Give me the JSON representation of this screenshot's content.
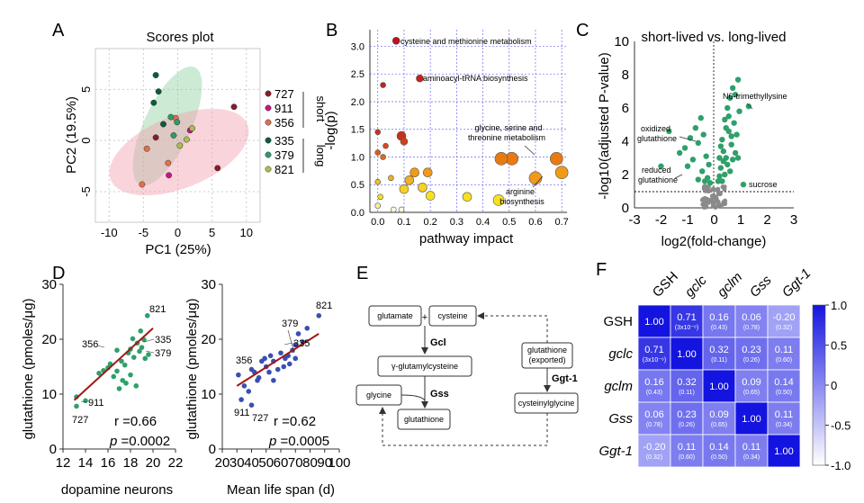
{
  "panels": {
    "A": {
      "letter": "A",
      "title": "Scores plot",
      "xlabel": "PC1 (25%)",
      "ylabel": "PC2 (19.5%)",
      "xticks": [
        "-10",
        "-5",
        "0",
        "5",
        "10"
      ],
      "yticks": [
        "5",
        "0",
        "-5"
      ],
      "legend_strains": [
        "727",
        "911",
        "356",
        "335",
        "379",
        "821"
      ],
      "group_short": "short",
      "group_long": "long"
    },
    "B": {
      "letter": "B",
      "xlabel": "pathway impact",
      "ylabel": "-log(p)",
      "xticks": [
        "0.0",
        "0.1",
        "0.2",
        "0.3",
        "0.4",
        "0.5",
        "0.6",
        "0.7"
      ],
      "yticks": [
        "3.0",
        "2.5",
        "2.0",
        "1.5",
        "1.0",
        "0.5",
        "0.0"
      ],
      "ann_cys": "cysteine and methionine metabolism",
      "ann_trna": "aminoacyl-tRNA biosynthesis",
      "ann_gly1": "glycine, serine and",
      "ann_gly2": "threonine metabolism",
      "ann_arg1": "arginine",
      "ann_arg2": "biosynthesis"
    },
    "C": {
      "letter": "C",
      "title": "short-lived vs. long-lived",
      "xlabel": "log2(fold-change)",
      "ylabel": "-log10(adjusted P-value)",
      "xticks": [
        "-3",
        "-2",
        "-1",
        "0",
        "1",
        "2",
        "3"
      ],
      "yticks": [
        "10",
        "8",
        "6",
        "4",
        "2",
        "0"
      ],
      "ann_ox1": "oxidized",
      "ann_ox2": "glutathione",
      "ann_red1": "reduced",
      "ann_red2": "glutathione",
      "ann_n6": "N6-trimethyllysine",
      "ann_suc": "sucrose"
    },
    "D": {
      "letter": "D",
      "ylabel": "glutathione (pmoles/μg)",
      "left": {
        "xlabel": "dopamine neurons",
        "xticks": [
          "12",
          "14",
          "16",
          "18",
          "20",
          "22"
        ],
        "yticks": [
          "30",
          "20",
          "10",
          "0"
        ],
        "r": "r =0.66",
        "p_sym": "p",
        "p": " =0.0002",
        "labels": [
          "821",
          "335",
          "379",
          "356",
          "911",
          "727"
        ]
      },
      "right": {
        "xlabel": "Mean life span (d)",
        "xticks": [
          "20",
          "30",
          "40",
          "50",
          "60",
          "70",
          "80",
          "90",
          "100"
        ],
        "yticks": [
          "30",
          "20",
          "10",
          "0"
        ],
        "r": "r =0.62",
        "p_sym": "p",
        "p": " =0.0005",
        "labels": [
          "821",
          "379",
          "335",
          "356",
          "911",
          "727"
        ]
      }
    },
    "E": {
      "letter": "E",
      "glutamate": "glutamate",
      "plus": "+",
      "cysteine": "cysteine",
      "gcl": "Gcl",
      "gglu": "γ-glutamylcysteine",
      "glycine": "glycine",
      "gss": "Gss",
      "glutathione": "glutathione",
      "exported1": "glutathione",
      "exported2": "(exported)",
      "ggt": "Ggt-1",
      "cysgly": "cysteinylglycine"
    },
    "F": {
      "letter": "F",
      "genes": [
        "GSH",
        "gclc",
        "gclm",
        "Gss",
        "Ggt-1"
      ],
      "colorbar_ticks": [
        "1.0",
        "0.5",
        "0",
        "-0.5",
        "-1.0"
      ],
      "matrix": [
        [
          [
            "1.00",
            ""
          ],
          [
            "0.71",
            "(3x10⁻⁶)"
          ],
          [
            "0.16",
            "(0.43)"
          ],
          [
            "0.06",
            "(0.78)"
          ],
          [
            "-0.20",
            "(0.32)"
          ]
        ],
        [
          [
            "0.71",
            "(3x10⁻⁶)"
          ],
          [
            "1.00",
            ""
          ],
          [
            "0.32",
            "(0.11)"
          ],
          [
            "0.23",
            "(0.26)"
          ],
          [
            "0.11",
            "(0.60)"
          ]
        ],
        [
          [
            "0.16",
            "(0.43)"
          ],
          [
            "0.32",
            "(0.11)"
          ],
          [
            "1.00",
            ""
          ],
          [
            "0.09",
            "(0.65)"
          ],
          [
            "0.14",
            "(0.50)"
          ]
        ],
        [
          [
            "0.06",
            "(0.78)"
          ],
          [
            "0.23",
            "(0.26)"
          ],
          [
            "0.09",
            "(0.65)"
          ],
          [
            "1.00",
            ""
          ],
          [
            "0.11",
            "(0.34)"
          ]
        ],
        [
          [
            "-0.20",
            "(0.32)"
          ],
          [
            "0.11",
            "(0.60)"
          ],
          [
            "0.14",
            "(0.50)"
          ],
          [
            "0.11",
            "(0.34)"
          ],
          [
            "1.00",
            ""
          ]
        ]
      ]
    }
  },
  "chart_data": [
    {
      "type": "scatter",
      "title": "Scores plot",
      "xlabel": "PC1 (25%)",
      "ylabel": "PC2 (19.5%)",
      "xlim": [
        -12,
        12
      ],
      "ylim": [
        -8,
        9
      ],
      "series": [
        {
          "name": "727",
          "color": "#8b1a2b",
          "x": [
            -3.2,
            8.2,
            5.8
          ],
          "y": [
            0.3,
            3.3,
            -2.7
          ]
        },
        {
          "name": "911",
          "color": "#c71585",
          "x": [
            -1.3,
            1.8
          ],
          "y": [
            -3.4,
            1.0
          ]
        },
        {
          "name": "356",
          "color": "#e0704a",
          "x": [
            -4.5,
            -1.4,
            -0.3,
            -5.2
          ],
          "y": [
            -0.8,
            -2.2,
            2.2,
            -4.3
          ]
        },
        {
          "name": "335",
          "color": "#0b5d3b",
          "x": [
            -3.2,
            -2.8,
            -3.5,
            -2.1
          ],
          "y": [
            6.4,
            4.8,
            3.7,
            1.6
          ]
        },
        {
          "name": "379",
          "color": "#2e9b6b",
          "x": [
            -0.6,
            -0.1,
            -1.0
          ],
          "y": [
            0.5,
            1.8,
            2.3
          ]
        },
        {
          "name": "821",
          "color": "#a8c04a",
          "x": [
            1.3,
            2.1,
            0.3
          ],
          "y": [
            0.1,
            1.2,
            -0.5
          ]
        }
      ]
    },
    {
      "type": "scatter",
      "xlabel": "pathway impact",
      "ylabel": "-log(p)",
      "xlim": [
        -0.03,
        0.72
      ],
      "ylim": [
        0,
        3.3
      ],
      "points": [
        {
          "x": 0.07,
          "y": 3.1,
          "color": "#c0101a",
          "size": 4
        },
        {
          "x": 0.16,
          "y": 2.42,
          "color": "#c8201a",
          "size": 4
        },
        {
          "x": 0.02,
          "y": 2.3,
          "color": "#c8201a",
          "size": 3
        },
        {
          "x": 0.0,
          "y": 1.45,
          "color": "#d83018",
          "size": 3
        },
        {
          "x": 0.09,
          "y": 1.38,
          "color": "#c83018",
          "size": 5
        },
        {
          "x": 0.1,
          "y": 1.28,
          "color": "#d04018",
          "size": 4
        },
        {
          "x": 0.03,
          "y": 1.2,
          "color": "#d84a18",
          "size": 3
        },
        {
          "x": 0.0,
          "y": 1.08,
          "color": "#e05a18",
          "size": 3
        },
        {
          "x": 0.02,
          "y": 1.0,
          "color": "#e06a18",
          "size": 3
        },
        {
          "x": 0.51,
          "y": 0.97,
          "color": "#e87a10",
          "size": 7
        },
        {
          "x": 0.68,
          "y": 0.97,
          "color": "#e87a10",
          "size": 7
        },
        {
          "x": 0.47,
          "y": 0.97,
          "color": "#e87a10",
          "size": 7
        },
        {
          "x": 0.14,
          "y": 0.72,
          "color": "#f09a18",
          "size": 5
        },
        {
          "x": 0.19,
          "y": 0.72,
          "color": "#f09a18",
          "size": 5
        },
        {
          "x": 0.6,
          "y": 0.62,
          "color": "#f09a18",
          "size": 7
        },
        {
          "x": 0.7,
          "y": 0.72,
          "color": "#f09a18",
          "size": 7
        },
        {
          "x": 0.05,
          "y": 0.62,
          "color": "#f0b020",
          "size": 3
        },
        {
          "x": 0.12,
          "y": 0.58,
          "color": "#f0b020",
          "size": 5
        },
        {
          "x": 0.0,
          "y": 0.55,
          "color": "#f0c020",
          "size": 3
        },
        {
          "x": 0.1,
          "y": 0.42,
          "color": "#f8d020",
          "size": 5
        },
        {
          "x": 0.17,
          "y": 0.45,
          "color": "#f8d020",
          "size": 5
        },
        {
          "x": 0.2,
          "y": 0.3,
          "color": "#f8e020",
          "size": 5
        },
        {
          "x": 0.34,
          "y": 0.28,
          "color": "#f8e020",
          "size": 5
        },
        {
          "x": 0.46,
          "y": 0.22,
          "color": "#f8e020",
          "size": 6
        },
        {
          "x": 0.01,
          "y": 0.28,
          "color": "#f8e020",
          "size": 3
        },
        {
          "x": 0.0,
          "y": 0.12,
          "color": "#f8f0a0",
          "size": 3
        },
        {
          "x": 0.06,
          "y": 0.05,
          "color": "#fafae0",
          "size": 3
        },
        {
          "x": 0.09,
          "y": 0.05,
          "color": "#fafae0",
          "size": 3
        }
      ]
    },
    {
      "type": "scatter",
      "title": "short-lived vs. long-lived",
      "xlabel": "log2(fold-change)",
      "ylabel": "-log10(adjusted P-value)",
      "xlim": [
        -3,
        3
      ],
      "ylim": [
        0,
        10
      ],
      "threshold_y": 1.3
    },
    {
      "type": "scatter",
      "xlabel": "dopamine neurons",
      "ylabel": "glutathione (pmoles/μg)",
      "xlim": [
        12,
        22
      ],
      "ylim": [
        0,
        30
      ],
      "r": 0.66,
      "p": 0.0002,
      "x": [
        13.2,
        19.5,
        19.3,
        15.6,
        14.0,
        13.2,
        16.0,
        16.8,
        17.2,
        17.5,
        18.0,
        18.2,
        18.6,
        18.9,
        19.2,
        17.8,
        16.5,
        18.0,
        18.5,
        17.0,
        16.2,
        18.8,
        19.0,
        17.6,
        15.2,
        16.8,
        18.3,
        19.6,
        17.3
      ],
      "y": [
        7.8,
        24.3,
        16.5,
        14.3,
        8.8,
        9.5,
        14.8,
        14.2,
        16.0,
        15.3,
        18.2,
        20.1,
        19.3,
        21.5,
        19.9,
        17.5,
        13.2,
        13.5,
        11.5,
        11.0,
        15.5,
        17.8,
        18.5,
        12.0,
        13.8,
        18.0,
        16.7,
        17.2,
        12.5
      ],
      "fit": {
        "x": [
          13,
          20
        ],
        "y": [
          8.9,
          22.0
        ]
      }
    },
    {
      "type": "scatter",
      "xlabel": "Mean life span (d)",
      "ylabel": "glutathione (pmoles/μg)",
      "xlim": [
        20,
        100
      ],
      "ylim": [
        0,
        30
      ],
      "r": 0.62,
      "p": 0.0005,
      "x": [
        86,
        70,
        75,
        42,
        33,
        40,
        31,
        40,
        45,
        50,
        52,
        55,
        60,
        62,
        65,
        68,
        72,
        78,
        47,
        55,
        38,
        44,
        49,
        58,
        63,
        66,
        70,
        35,
        53
      ],
      "y": [
        24.3,
        16.5,
        19.5,
        14.0,
        9.0,
        8.0,
        13.5,
        14.5,
        13.0,
        15.0,
        14.0,
        16.0,
        17.5,
        15.0,
        17.0,
        18.0,
        21.0,
        22.0,
        16.0,
        12.5,
        10.5,
        12.5,
        16.5,
        14.5,
        16.5,
        15.5,
        19.0,
        11.5,
        17.0
      ],
      "fit": {
        "x": [
          30,
          86
        ],
        "y": [
          11.5,
          21.0
        ]
      }
    },
    {
      "type": "heatmap",
      "categories": [
        "GSH",
        "gclc",
        "gclm",
        "Gss",
        "Ggt-1"
      ],
      "values": [
        [
          1.0,
          0.71,
          0.16,
          0.06,
          -0.2
        ],
        [
          0.71,
          1.0,
          0.32,
          0.23,
          0.11
        ],
        [
          0.16,
          0.32,
          1.0,
          0.09,
          0.14
        ],
        [
          0.06,
          0.23,
          0.09,
          1.0,
          0.11
        ],
        [
          -0.2,
          0.11,
          0.14,
          0.11,
          1.0
        ]
      ],
      "colorbar_range": [
        -1.0,
        1.0
      ]
    }
  ]
}
